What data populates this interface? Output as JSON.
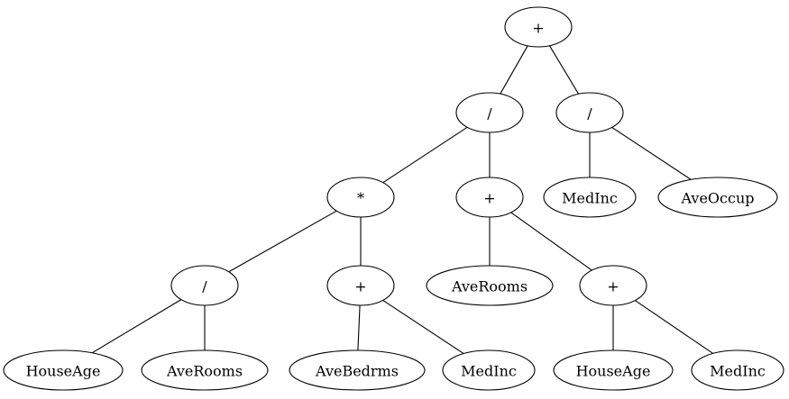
{
  "tree": {
    "nodes": [
      {
        "id": "n0",
        "label": "+"
      },
      {
        "id": "n1",
        "label": "/"
      },
      {
        "id": "n2",
        "label": "/"
      },
      {
        "id": "n3",
        "label": "*"
      },
      {
        "id": "n4",
        "label": "+"
      },
      {
        "id": "n5",
        "label": "MedInc"
      },
      {
        "id": "n6",
        "label": "AveOccup"
      },
      {
        "id": "n7",
        "label": "/"
      },
      {
        "id": "n8",
        "label": "+"
      },
      {
        "id": "n9",
        "label": "AveRooms"
      },
      {
        "id": "n10",
        "label": "+"
      },
      {
        "id": "n11",
        "label": "HouseAge"
      },
      {
        "id": "n12",
        "label": "AveRooms"
      },
      {
        "id": "n13",
        "label": "AveBedrms"
      },
      {
        "id": "n14",
        "label": "MedInc"
      },
      {
        "id": "n15",
        "label": "HouseAge"
      },
      {
        "id": "n16",
        "label": "MedInc"
      }
    ],
    "edges": [
      [
        "n0",
        "n1"
      ],
      [
        "n0",
        "n2"
      ],
      [
        "n1",
        "n3"
      ],
      [
        "n1",
        "n4"
      ],
      [
        "n2",
        "n5"
      ],
      [
        "n2",
        "n6"
      ],
      [
        "n3",
        "n7"
      ],
      [
        "n3",
        "n8"
      ],
      [
        "n4",
        "n9"
      ],
      [
        "n4",
        "n10"
      ],
      [
        "n7",
        "n11"
      ],
      [
        "n7",
        "n12"
      ],
      [
        "n8",
        "n13"
      ],
      [
        "n8",
        "n14"
      ],
      [
        "n10",
        "n15"
      ],
      [
        "n10",
        "n16"
      ]
    ]
  }
}
